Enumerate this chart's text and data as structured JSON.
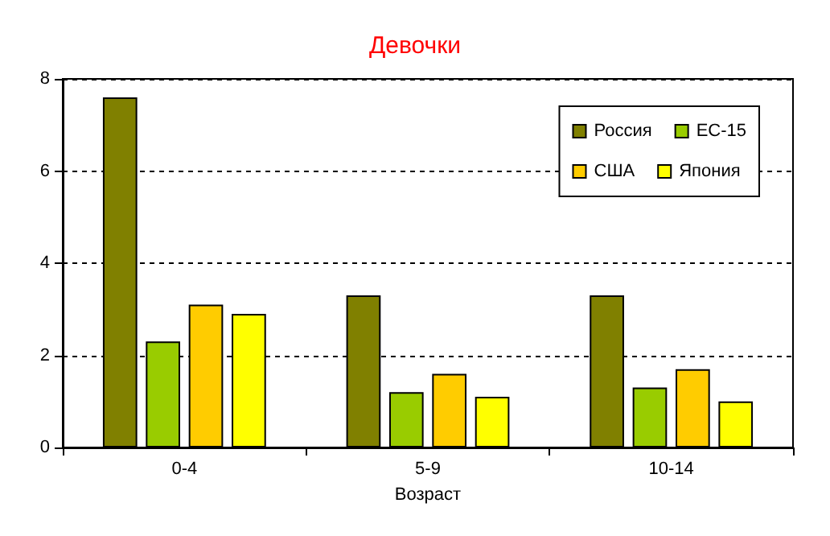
{
  "chart_data": {
    "type": "bar",
    "title": "Девочки",
    "xlabel": "Возраст",
    "categories": [
      "0-4",
      "5-9",
      "10-14"
    ],
    "series": [
      {
        "name": "Россия",
        "color": "#808000",
        "values": [
          7.6,
          3.3,
          3.3
        ]
      },
      {
        "name": "ЕС-15",
        "color": "#99cc00",
        "values": [
          2.3,
          1.2,
          1.3
        ]
      },
      {
        "name": "США",
        "color": "#ffcc00",
        "values": [
          3.1,
          1.6,
          1.7
        ]
      },
      {
        "name": "Япония",
        "color": "#ffff00",
        "values": [
          2.9,
          1.1,
          1.0
        ]
      }
    ],
    "ylim": [
      0,
      8
    ],
    "yticks": [
      0,
      2,
      4,
      6,
      8
    ],
    "grid": "y",
    "legend": "top right"
  }
}
